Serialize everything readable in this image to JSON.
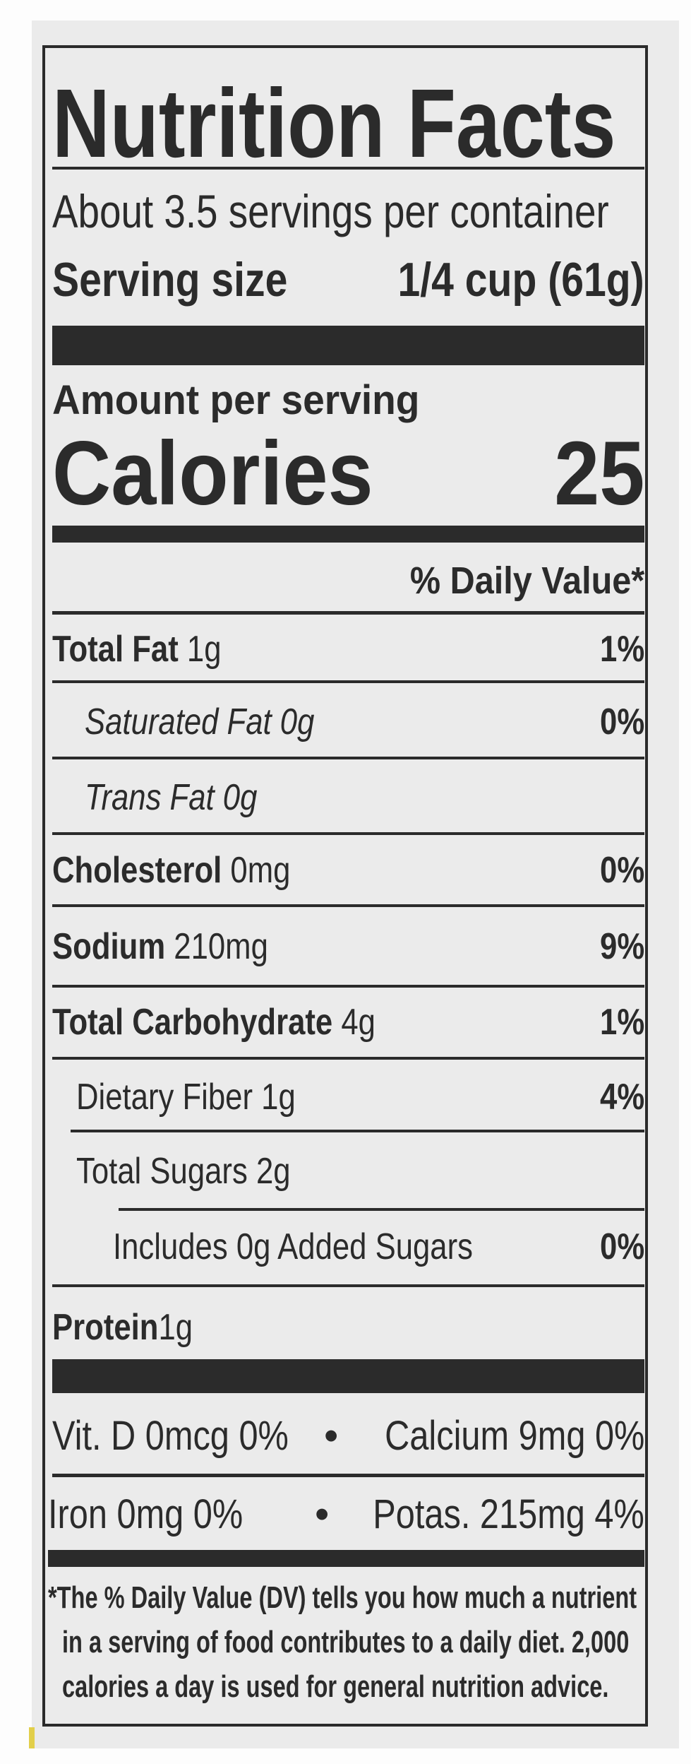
{
  "title": "Nutrition Facts",
  "servings_per_container": "About 3.5 servings per container",
  "serving_size_label": "Serving size",
  "serving_size_value": "1/4 cup (61g)",
  "amount_per_serving": "Amount per serving",
  "calories_label": "Calories",
  "calories_value": "25",
  "daily_value_header": "% Daily Value*",
  "nutrients": [
    {
      "name": "Total Fat",
      "amount": "1g",
      "dv": "1%"
    },
    {
      "name": "Saturated Fat",
      "amount": "0g",
      "dv": "0%"
    },
    {
      "name": "Trans",
      "name_rest": "Fat",
      "amount": "0g",
      "dv": ""
    },
    {
      "name": "Cholesterol",
      "amount": "0mg",
      "dv": "0%"
    },
    {
      "name": "Sodium",
      "amount": "210mg",
      "dv": "9%"
    },
    {
      "name": "Total Carbohydrate",
      "amount": "4g",
      "dv": "1%"
    },
    {
      "name": "Dietary Fiber",
      "amount": "1g",
      "dv": "4%"
    },
    {
      "name": "Total Sugars",
      "amount": "2g",
      "dv": ""
    },
    {
      "name": "Includes 0g Added Sugars",
      "amount": "",
      "dv": "0%"
    },
    {
      "name": "Protein",
      "amount": "1g",
      "dv": ""
    }
  ],
  "micronutrients": [
    {
      "left": "Vit. D 0mcg 0%",
      "bullet": "•",
      "right": "Calcium 9mg 0%"
    },
    {
      "left": "Iron 0mg 0%",
      "bullet": "•",
      "right": "Potas. 215mg 4%"
    }
  ],
  "footnote": [
    "*The % Daily Value (DV) tells you how much a nutrient",
    "in a serving of food contributes to a daily diet. 2,000",
    "calories a day is used for general nutrition advice."
  ],
  "colors": {
    "ink": "#2b2b2b",
    "paper": "#ebebeb"
  }
}
